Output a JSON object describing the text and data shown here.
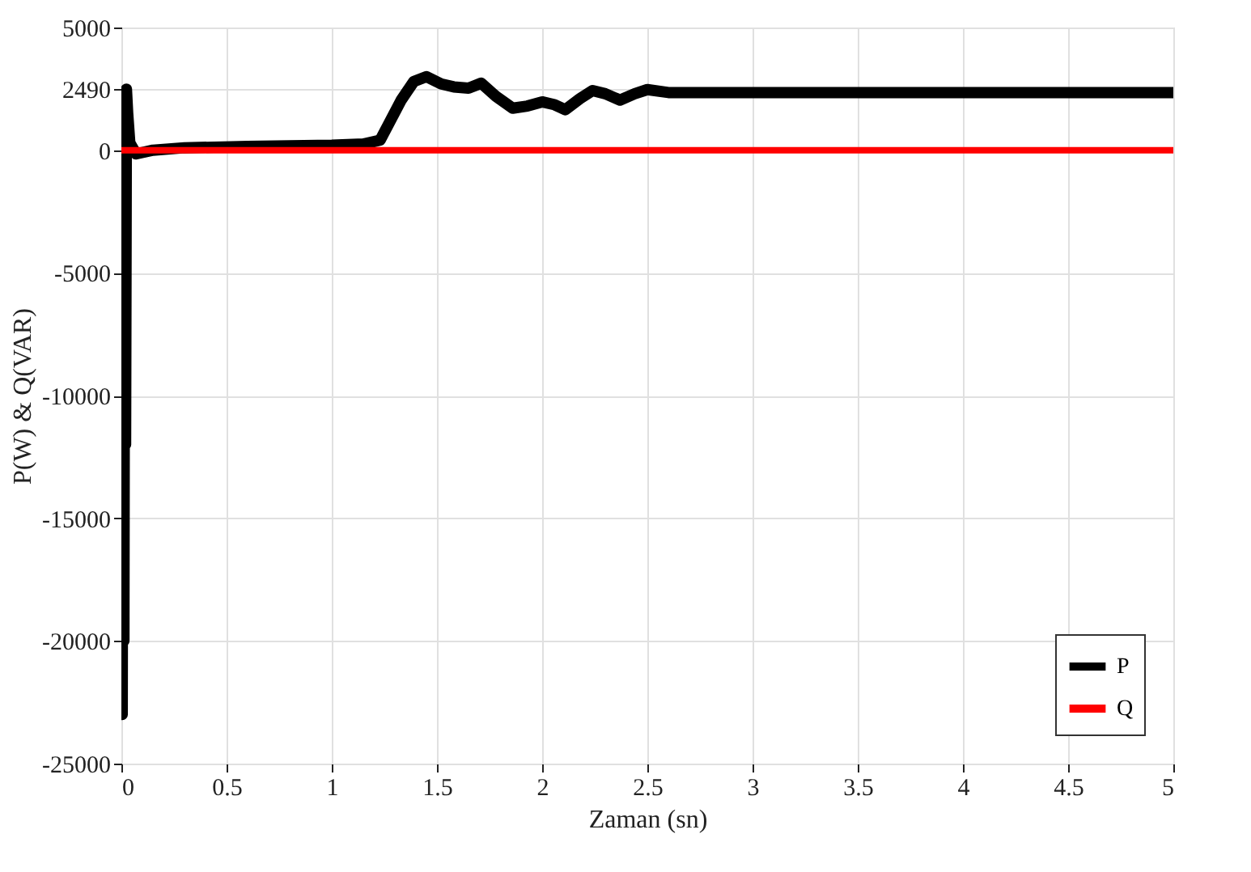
{
  "chart_data": {
    "type": "line",
    "xlabel": "Zaman (sn)",
    "ylabel": "P(W) & Q(VAR)",
    "xlim": [
      0,
      5
    ],
    "xticks": [
      0,
      0.5,
      1,
      1.5,
      2,
      2.5,
      3,
      3.5,
      4,
      4.5,
      5
    ],
    "ylim": [
      -25000,
      5000
    ],
    "yticks": [
      -25000,
      -20000,
      -15000,
      -10000,
      -5000,
      0,
      2490,
      5000
    ],
    "grid": true,
    "legend": "bottom right",
    "line_style": "solid",
    "marker": "none",
    "series": [
      {
        "name": "P",
        "color": "#000000",
        "x": [
          0,
          0.004,
          0.008,
          0.012,
          0.016,
          0.02,
          0.024,
          0.03,
          0.04,
          0.07,
          0.15,
          0.3,
          0.6,
          1.0,
          1.15,
          1.23,
          1.33,
          1.39,
          1.45,
          1.52,
          1.58,
          1.65,
          1.71,
          1.78,
          1.86,
          1.93,
          2.0,
          2.06,
          2.11,
          2.18,
          2.24,
          2.3,
          2.37,
          2.44,
          2.5,
          2.6,
          3.0,
          3.5,
          4.0,
          4.5,
          5.0
        ],
        "values": [
          0,
          -23000,
          1500,
          -20000,
          2400,
          -12000,
          2490,
          1500,
          300,
          -150,
          0,
          100,
          150,
          200,
          250,
          410,
          2040,
          2800,
          3000,
          2700,
          2580,
          2530,
          2730,
          2200,
          1710,
          1800,
          1970,
          1850,
          1650,
          2100,
          2430,
          2300,
          2040,
          2300,
          2470,
          2350,
          2350,
          2350,
          2350,
          2350,
          2350
        ]
      },
      {
        "name": "Q",
        "color": "#ff0000",
        "x": [
          0,
          5
        ],
        "values": [
          0,
          0
        ]
      }
    ]
  }
}
